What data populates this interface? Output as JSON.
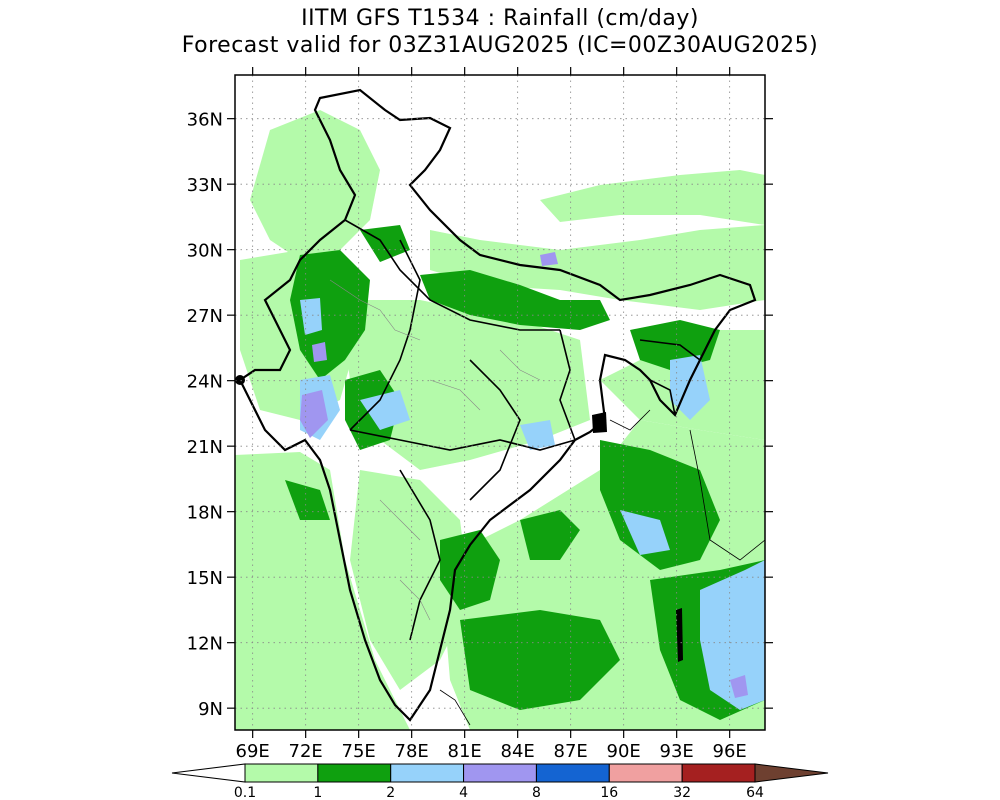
{
  "title_line1": "IITM GFS T1534 : Rainfall (cm/day)",
  "title_line2": "Forecast valid for 03Z31AUG2025 (IC=00Z30AUG2025)",
  "lat_labels": [
    "36N",
    "33N",
    "30N",
    "27N",
    "24N",
    "21N",
    "18N",
    "15N",
    "12N",
    "9N"
  ],
  "lon_labels": [
    "69E",
    "72E",
    "75E",
    "78E",
    "81E",
    "84E",
    "87E",
    "90E",
    "93E",
    "96E"
  ],
  "colorbar_labels": [
    "0.1",
    "1",
    "2",
    "4",
    "8",
    "16",
    "32",
    "64"
  ],
  "colorbar_colors": [
    "#b4faaa",
    "#0fa00f",
    "#96d2fa",
    "#a096f0",
    "#1464d2",
    "#f0a0a0",
    "#a52020",
    "#6e4030"
  ],
  "map_data": {
    "lat_range": [
      8,
      38
    ],
    "lon_range": [
      68,
      98
    ],
    "grid": "dotted",
    "units": "cm/day"
  }
}
